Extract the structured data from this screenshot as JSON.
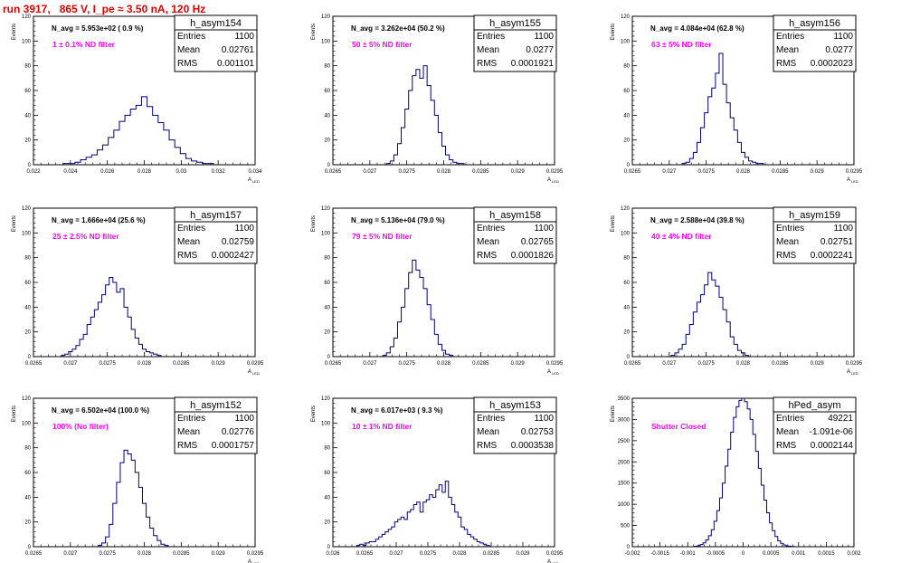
{
  "page": {
    "title": "run 3917,   865 V, I_pe ≈ 3.50 nA, 120 Hz",
    "colors": {
      "title": "#e00000",
      "histogram": "#000080",
      "annotation": "#ff00ff",
      "text": "#000000"
    }
  },
  "chart_data": [
    {
      "type": "histogram",
      "name": "h_asym154",
      "navg": "N_avg = 5.953e+02 ( 0.9 %)",
      "filter": "1 ± 0.1% ND filter",
      "ylabel": "Events",
      "xlabel": "A_LED",
      "xlim": [
        0.022,
        0.034
      ],
      "ylim": [
        0,
        120
      ],
      "xticks": [
        "0.022",
        "0.024",
        "0.026",
        "0.028",
        "0.03",
        "0.032",
        "0.034"
      ],
      "yticks": [
        "0",
        "20",
        "40",
        "60",
        "80",
        "100",
        "120"
      ],
      "stats": {
        "entries": "1100",
        "mean": "0.02761",
        "rms": "0.001101"
      },
      "x": [
        0.0238,
        0.0241,
        0.0244,
        0.0247,
        0.025,
        0.0253,
        0.0256,
        0.0259,
        0.0262,
        0.0265,
        0.0268,
        0.0271,
        0.0274,
        0.0277,
        0.028,
        0.0283,
        0.0286,
        0.0289,
        0.0292,
        0.0295,
        0.0298,
        0.0301,
        0.0304,
        0.0307,
        0.031,
        0.0313,
        0.0316
      ],
      "values": [
        1,
        1,
        2,
        4,
        6,
        8,
        12,
        16,
        22,
        28,
        35,
        40,
        45,
        48,
        55,
        47,
        40,
        34,
        28,
        20,
        14,
        9,
        5,
        3,
        2,
        1,
        1
      ]
    },
    {
      "type": "histogram",
      "name": "h_asym155",
      "navg": "N_avg = 3.262e+04 (50.2 %)",
      "filter": "50 ± 5% ND filter",
      "ylabel": "Events",
      "xlabel": "A_LED",
      "xlim": [
        0.0265,
        0.0295
      ],
      "ylim": [
        0,
        120
      ],
      "xticks": [
        "0.0265",
        "0.027",
        "0.0275",
        "0.028",
        "0.0285",
        "0.029",
        "0.0295"
      ],
      "yticks": [
        "0",
        "20",
        "40",
        "60",
        "80",
        "100",
        "120"
      ],
      "stats": {
        "entries": "1100",
        "mean": "0.0277",
        "rms": "0.0001921"
      },
      "x": [
        0.02725,
        0.0273,
        0.02735,
        0.0274,
        0.02745,
        0.0275,
        0.02755,
        0.0276,
        0.02765,
        0.0277,
        0.02775,
        0.0278,
        0.02785,
        0.0279,
        0.02795,
        0.028,
        0.02805,
        0.0281,
        0.02815,
        0.0282,
        0.02825
      ],
      "values": [
        1,
        3,
        8,
        17,
        30,
        45,
        60,
        72,
        77,
        70,
        80,
        64,
        52,
        40,
        26,
        15,
        8,
        4,
        2,
        1,
        1
      ]
    },
    {
      "type": "histogram",
      "name": "h_asym156",
      "navg": "N_avg = 4.084e+04 (62.8 %)",
      "filter": "63 ± 5% ND filter",
      "ylabel": "Events",
      "xlabel": "A_LED",
      "xlim": [
        0.0265,
        0.0295
      ],
      "ylim": [
        0,
        120
      ],
      "xticks": [
        "0.0265",
        "0.027",
        "0.0275",
        "0.028",
        "0.0285",
        "0.029",
        "0.0295"
      ],
      "yticks": [
        "0",
        "20",
        "40",
        "60",
        "80",
        "100",
        "120"
      ],
      "stats": {
        "entries": "1100",
        "mean": "0.0277",
        "rms": "0.0002023"
      },
      "x": [
        0.0272,
        0.02725,
        0.0273,
        0.02735,
        0.0274,
        0.02745,
        0.0275,
        0.02755,
        0.0276,
        0.02765,
        0.0277,
        0.02775,
        0.0278,
        0.02785,
        0.0279,
        0.02795,
        0.028,
        0.02805,
        0.0281,
        0.02815,
        0.0282,
        0.02825
      ],
      "values": [
        1,
        2,
        5,
        10,
        18,
        30,
        42,
        55,
        62,
        74,
        90,
        65,
        50,
        38,
        28,
        18,
        10,
        6,
        3,
        2,
        1,
        1
      ]
    },
    {
      "type": "histogram",
      "name": "h_asym157",
      "navg": "N_avg = 1.666e+04 (25.6 %)",
      "filter": "25 ± 2.5% ND filter",
      "ylabel": "Events",
      "xlabel": "A_LED",
      "xlim": [
        0.0265,
        0.0295
      ],
      "ylim": [
        0,
        120
      ],
      "xticks": [
        "0.0265",
        "0.027",
        "0.0275",
        "0.028",
        "0.0285",
        "0.029",
        "0.0295"
      ],
      "yticks": [
        "0",
        "20",
        "40",
        "60",
        "80",
        "100",
        "120"
      ],
      "stats": {
        "entries": "1100",
        "mean": "0.02759",
        "rms": "0.0002427"
      },
      "x": [
        0.0269,
        0.02695,
        0.027,
        0.02705,
        0.0271,
        0.02715,
        0.0272,
        0.02725,
        0.0273,
        0.02735,
        0.0274,
        0.02745,
        0.0275,
        0.02755,
        0.0276,
        0.02765,
        0.0277,
        0.02775,
        0.0278,
        0.02785,
        0.0279,
        0.02795,
        0.028,
        0.02805,
        0.0281,
        0.02815,
        0.0282
      ],
      "values": [
        1,
        2,
        4,
        6,
        9,
        14,
        18,
        26,
        32,
        38,
        44,
        50,
        58,
        64,
        60,
        52,
        55,
        40,
        32,
        22,
        15,
        10,
        6,
        4,
        3,
        2,
        1
      ]
    },
    {
      "type": "histogram",
      "name": "h_asym158",
      "navg": "N_avg = 5.136e+04 (79.0 %)",
      "filter": "79 ± 5% ND filter",
      "ylabel": "Events",
      "xlabel": "A_LED",
      "xlim": [
        0.0265,
        0.0295
      ],
      "ylim": [
        0,
        120
      ],
      "xticks": [
        "0.0265",
        "0.027",
        "0.0275",
        "0.028",
        "0.0285",
        "0.029",
        "0.0295"
      ],
      "yticks": [
        "0",
        "20",
        "40",
        "60",
        "80",
        "100",
        "120"
      ],
      "stats": {
        "entries": "1100",
        "mean": "0.02765",
        "rms": "0.0001826"
      },
      "x": [
        0.0272,
        0.02725,
        0.0273,
        0.02735,
        0.0274,
        0.02745,
        0.0275,
        0.02755,
        0.0276,
        0.02765,
        0.0277,
        0.02775,
        0.0278,
        0.02785,
        0.0279,
        0.02795,
        0.028,
        0.02805,
        0.0281
      ],
      "values": [
        1,
        3,
        8,
        15,
        28,
        40,
        55,
        68,
        78,
        70,
        64,
        55,
        42,
        30,
        18,
        10,
        5,
        2,
        1
      ]
    },
    {
      "type": "histogram",
      "name": "h_asym159",
      "navg": "N_avg = 2.588e+04 (39.8 %)",
      "filter": "40 ± 4% ND filter",
      "ylabel": "Events",
      "xlabel": "A_LED",
      "xlim": [
        0.0265,
        0.0295
      ],
      "ylim": [
        0,
        120
      ],
      "xticks": [
        "0.0265",
        "0.027",
        "0.0275",
        "0.028",
        "0.0285",
        "0.029",
        "0.0295"
      ],
      "yticks": [
        "0",
        "20",
        "40",
        "60",
        "80",
        "100",
        "120"
      ],
      "stats": {
        "entries": "1100",
        "mean": "0.02751",
        "rms": "0.0002241"
      },
      "x": [
        0.02705,
        0.0271,
        0.02715,
        0.0272,
        0.02725,
        0.0273,
        0.02735,
        0.0274,
        0.02745,
        0.0275,
        0.02755,
        0.0276,
        0.02765,
        0.0277,
        0.02775,
        0.0278,
        0.02785,
        0.0279,
        0.02795,
        0.028,
        0.02805
      ],
      "values": [
        1,
        3,
        6,
        10,
        18,
        26,
        36,
        44,
        50,
        58,
        68,
        62,
        57,
        48,
        38,
        28,
        16,
        10,
        5,
        3,
        1
      ]
    },
    {
      "type": "histogram",
      "name": "h_asym152",
      "navg": "N_avg = 6.502e+04 (100.0 %)",
      "filter": "100% (No filter)",
      "ylabel": "Events",
      "xlabel": "A_LED",
      "xlim": [
        0.0265,
        0.0295
      ],
      "ylim": [
        0,
        120
      ],
      "xticks": [
        "0.0265",
        "0.027",
        "0.0275",
        "0.028",
        "0.0285",
        "0.029",
        "0.0295"
      ],
      "yticks": [
        "0",
        "20",
        "40",
        "60",
        "80",
        "100",
        "120"
      ],
      "stats": {
        "entries": "1100",
        "mean": "0.02776",
        "rms": "0.0001757"
      },
      "x": [
        0.0274,
        0.02745,
        0.0275,
        0.02755,
        0.0276,
        0.02765,
        0.0277,
        0.02775,
        0.0278,
        0.02785,
        0.0279,
        0.02795,
        0.028,
        0.02805,
        0.0281,
        0.02815,
        0.0282,
        0.02825,
        0.0283
      ],
      "values": [
        1,
        3,
        8,
        18,
        35,
        52,
        68,
        78,
        75,
        70,
        60,
        48,
        35,
        24,
        15,
        9,
        5,
        2,
        1
      ]
    },
    {
      "type": "histogram",
      "name": "h_asym153",
      "navg": "N_avg = 6.017e+03 ( 9.3 %)",
      "filter": "10 ± 1% ND filter",
      "ylabel": "Events",
      "xlabel": "A_LED",
      "xlim": [
        0.026,
        0.0295
      ],
      "ylim": [
        0,
        120
      ],
      "xticks": [
        "0.026",
        "0.0265",
        "0.027",
        "0.0275",
        "0.028",
        "0.0285",
        "0.029",
        "0.0295"
      ],
      "yticks": [
        "0",
        "20",
        "40",
        "60",
        "80",
        "100",
        "120"
      ],
      "stats": {
        "entries": "1100",
        "mean": "0.02753",
        "rms": "0.0003538"
      },
      "x": [
        0.0264,
        0.02645,
        0.0265,
        0.02655,
        0.0266,
        0.02665,
        0.0267,
        0.02675,
        0.0268,
        0.02685,
        0.0269,
        0.02695,
        0.027,
        0.02705,
        0.0271,
        0.02715,
        0.0272,
        0.02725,
        0.0273,
        0.02735,
        0.0274,
        0.02745,
        0.0275,
        0.02755,
        0.0276,
        0.02765,
        0.0277,
        0.02775,
        0.0278,
        0.02785,
        0.0279,
        0.02795,
        0.028,
        0.02805,
        0.0281,
        0.02815,
        0.0282,
        0.02825,
        0.0283,
        0.02835,
        0.0284,
        0.02845
      ],
      "values": [
        1,
        2,
        1,
        3,
        4,
        4,
        6,
        8,
        10,
        12,
        14,
        16,
        20,
        22,
        24,
        22,
        28,
        30,
        34,
        36,
        28,
        36,
        38,
        42,
        40,
        46,
        50,
        44,
        53,
        40,
        34,
        28,
        24,
        16,
        14,
        10,
        8,
        6,
        4,
        3,
        2,
        1
      ]
    },
    {
      "type": "histogram",
      "name": "hPed_asym",
      "navg": "",
      "filter": "Shutter Closed",
      "ylabel": "Events",
      "xlabel": "",
      "xlim": [
        -0.002,
        0.002
      ],
      "ylim": [
        0,
        3500
      ],
      "xticks": [
        "-0.002",
        "-0.0015",
        "-0.001",
        "-0.0005",
        "0",
        "0.0005",
        "0.001",
        "0.0015",
        "0.002"
      ],
      "yticks": [
        "0",
        "500",
        "1000",
        "1500",
        "2000",
        "2500",
        "3000",
        "3500"
      ],
      "stats": {
        "entries": "49221",
        "mean": "-1.091e-06",
        "rms": "0.0002144"
      },
      "x": [
        -0.00085,
        -0.0008,
        -0.00075,
        -0.0007,
        -0.00065,
        -0.0006,
        -0.00055,
        -0.0005,
        -0.00045,
        -0.0004,
        -0.00035,
        -0.0003,
        -0.00025,
        -0.0002,
        -0.00015,
        -0.0001,
        -5e-05,
        0,
        5e-05,
        0.0001,
        0.00015,
        0.0002,
        0.00025,
        0.0003,
        0.00035,
        0.0004,
        0.00045,
        0.0005,
        0.00055,
        0.0006,
        0.00065,
        0.0007,
        0.00075,
        0.0008,
        0.00085,
        0.0009
      ],
      "values": [
        10,
        25,
        50,
        90,
        160,
        260,
        400,
        600,
        850,
        1150,
        1500,
        1900,
        2300,
        2700,
        3050,
        3300,
        3450,
        3500,
        3420,
        3250,
        3000,
        2650,
        2250,
        1850,
        1450,
        1100,
        800,
        560,
        380,
        240,
        140,
        80,
        40,
        20,
        10,
        5
      ]
    }
  ]
}
